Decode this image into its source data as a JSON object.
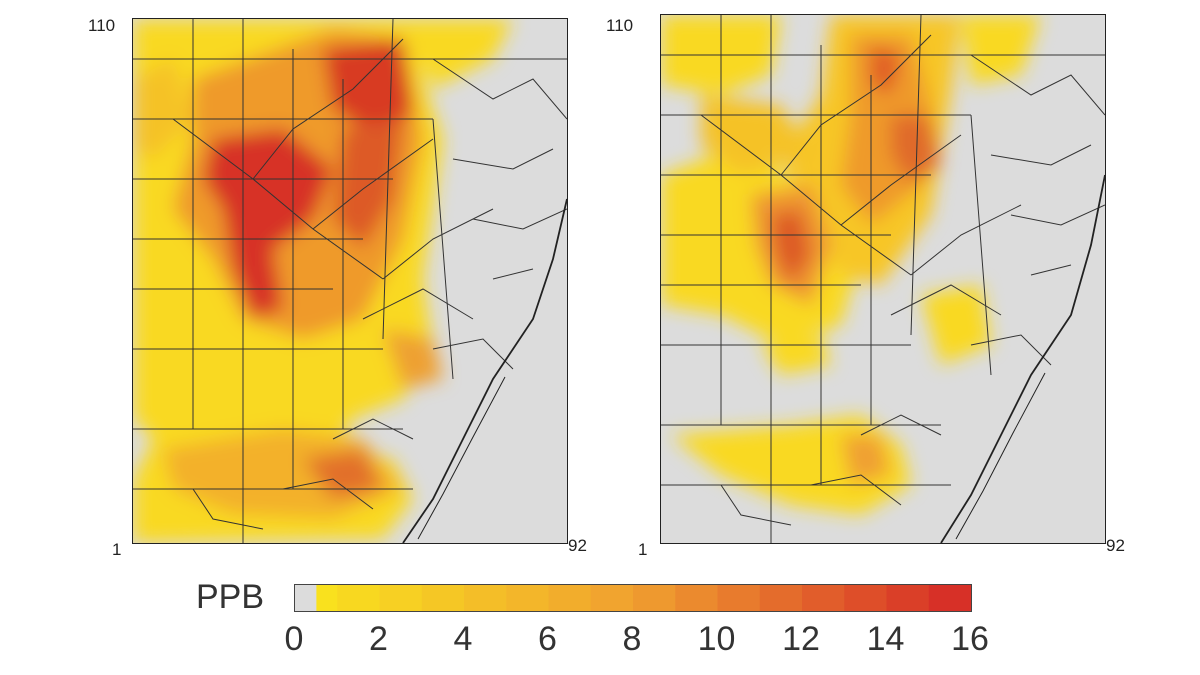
{
  "maps": [
    {
      "axis": {
        "y_max_label": "110",
        "origin_label": "1",
        "x_max_label": "92"
      }
    },
    {
      "axis": {
        "y_max_label": "110",
        "origin_label": "1",
        "x_max_label": "92"
      }
    }
  ],
  "legend": {
    "title": "PPB",
    "range": [
      0,
      16
    ],
    "ticks": [
      "0",
      "2",
      "4",
      "6",
      "8",
      "10",
      "12",
      "14",
      "16"
    ],
    "colors": {
      "zero": "#dcdcdc",
      "low": "#f9e11e",
      "mid": "#f0a030",
      "high": "#d73027"
    }
  },
  "colors": {
    "land": "#dcdcdc",
    "county_lines": "#333333",
    "frame": "#222222"
  }
}
